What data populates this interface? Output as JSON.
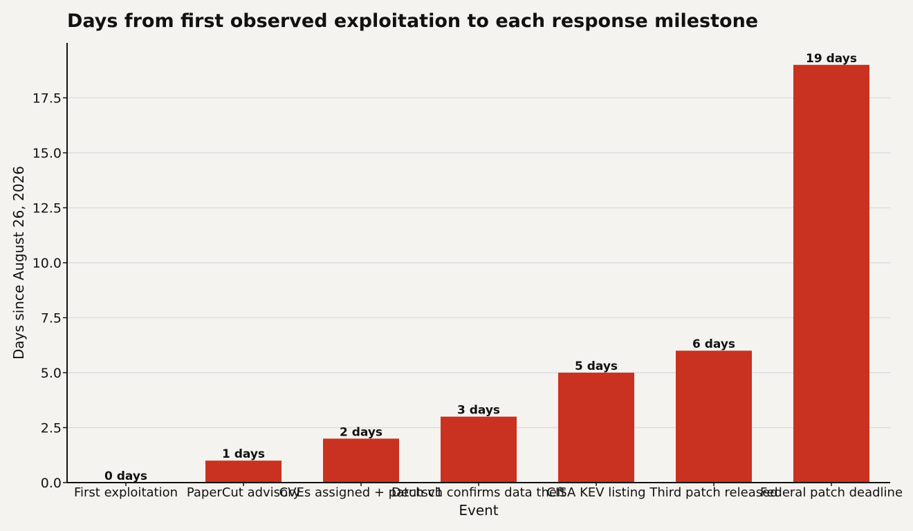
{
  "chart_data": {
    "type": "bar",
    "title": "Days from first observed exploitation to each response milestone",
    "xlabel": "Event",
    "ylabel": "Days since August 26, 2026",
    "categories": [
      "First exploitation",
      "PaperCut advisory",
      "CVEs assigned + patch v1",
      "Deutsch confirms data theft",
      "CISA KEV listing",
      "Third patch released",
      "Federal patch deadline"
    ],
    "values": [
      0,
      1,
      2,
      3,
      5,
      6,
      19
    ],
    "data_labels": [
      "0 days",
      "1 days",
      "2 days",
      "3 days",
      "5 days",
      "6 days",
      "19 days"
    ],
    "ylim": [
      0,
      20
    ],
    "yticks": [
      "0.0",
      "2.5",
      "5.0",
      "7.5",
      "10.0",
      "12.5",
      "15.0",
      "17.5"
    ],
    "ytick_values": [
      0,
      2.5,
      5,
      7.5,
      10,
      12.5,
      15,
      17.5
    ],
    "grid": true,
    "bar_color": "#c93220",
    "background_color": "#f5f3ef",
    "grid_color": "#dddddd"
  }
}
